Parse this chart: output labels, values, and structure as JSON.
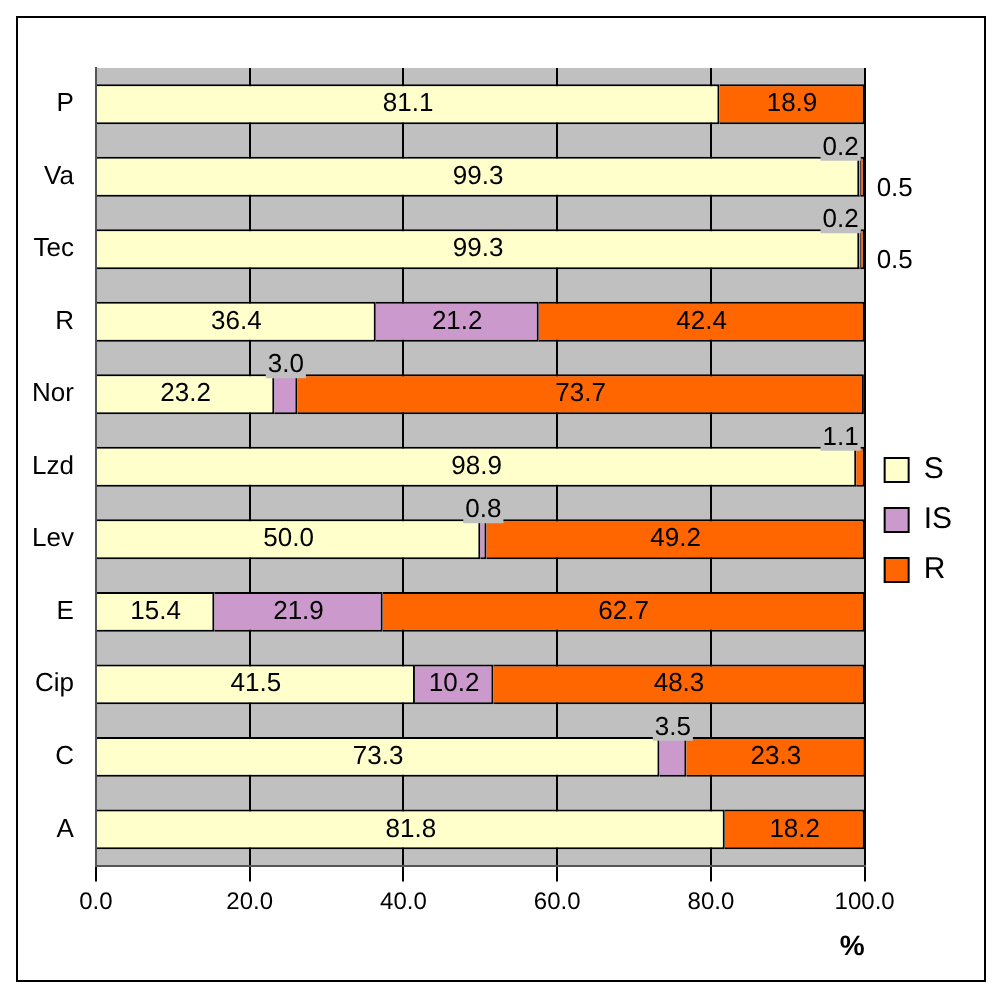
{
  "chart_data": {
    "type": "bar",
    "orientation": "horizontal",
    "stacked": true,
    "xlabel": "%",
    "categories": [
      "P",
      "Va",
      "Tec",
      "R",
      "Nor",
      "Lzd",
      "Lev",
      "E",
      "Cip",
      "C",
      "A"
    ],
    "series": [
      {
        "name": "S",
        "color": "#ffffcc",
        "values": [
          81.1,
          99.3,
          99.3,
          36.4,
          23.2,
          98.9,
          50.0,
          15.4,
          41.5,
          73.3,
          81.8
        ],
        "value_labels": [
          "81.1",
          "99.3",
          "99.3",
          "36.4",
          "23.2",
          "98.9",
          "50.0",
          "15.4",
          "41.5",
          "73.3",
          "81.8"
        ]
      },
      {
        "name": "IS",
        "color": "#cc99cc",
        "values": [
          0,
          0.2,
          0.2,
          21.2,
          3.0,
          0,
          0.8,
          21.9,
          10.2,
          3.5,
          0
        ],
        "value_labels": [
          null,
          "0.2",
          "0.2",
          "21.2",
          "3.0",
          null,
          "0.8",
          "21.9",
          "10.2",
          "3.5",
          null
        ]
      },
      {
        "name": "R",
        "color": "#ff6600",
        "values": [
          18.9,
          0.5,
          0.5,
          42.4,
          73.7,
          1.1,
          49.2,
          62.7,
          48.3,
          23.3,
          18.2
        ],
        "value_labels": [
          "18.9",
          "0.5",
          "0.5",
          "42.4",
          "73.7",
          "1.1",
          "49.2",
          "62.7",
          "48.3",
          "23.3",
          "18.2"
        ]
      }
    ],
    "xlim": [
      0,
      100
    ],
    "xticks": [
      {
        "value": 0,
        "label": "0.0"
      },
      {
        "value": 20,
        "label": "20.0"
      },
      {
        "value": 40,
        "label": "40.0"
      },
      {
        "value": 60,
        "label": "60.0"
      },
      {
        "value": 80,
        "label": "80.0"
      },
      {
        "value": 100,
        "label": "100.0"
      }
    ],
    "grid": "x",
    "legend": "right"
  }
}
